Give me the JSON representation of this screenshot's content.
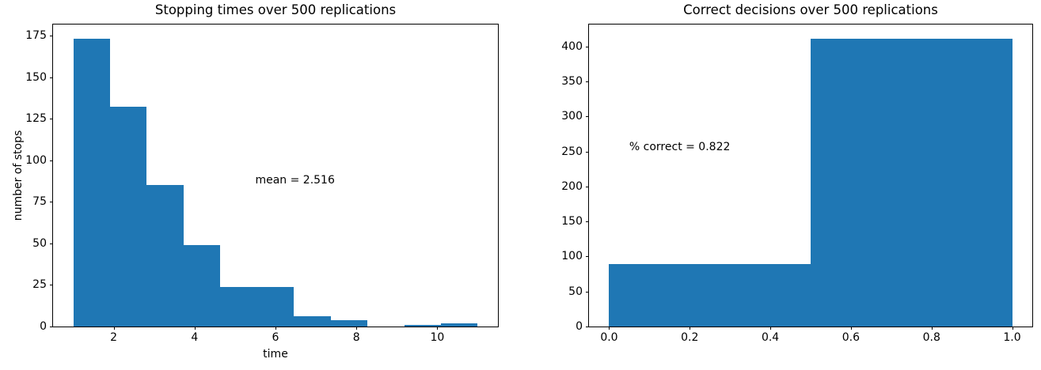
{
  "figure": {
    "background": "#ffffff",
    "bar_color": "#1f77b4",
    "spine_color": "#000000",
    "text_color": "#000000"
  },
  "chart_data": [
    {
      "type": "bar",
      "subtype": "histogram",
      "title": "Stopping times over 500 replications",
      "xlabel": "time",
      "ylabel": "number of stops",
      "annotation": {
        "text": "mean = 2.516",
        "x": 5.5,
        "y": 85
      },
      "bin_edges": [
        1.0,
        1.909,
        2.818,
        3.727,
        4.636,
        5.545,
        6.455,
        7.364,
        8.273,
        9.182,
        10.091,
        11.0
      ],
      "counts": [
        173,
        132,
        85,
        49,
        24,
        24,
        6,
        4,
        0,
        1,
        2
      ],
      "total_replications": 500,
      "xlim": [
        0.5,
        11.5
      ],
      "ylim": [
        0,
        181.65
      ],
      "xticks": [
        2,
        4,
        6,
        8,
        10
      ],
      "xtick_labels": [
        "2",
        "4",
        "6",
        "8",
        "10"
      ],
      "yticks": [
        0,
        25,
        50,
        75,
        100,
        125,
        150,
        175
      ],
      "ytick_labels": [
        "0",
        "25",
        "50",
        "75",
        "100",
        "125",
        "150",
        "175"
      ],
      "grid": false,
      "legend": null
    },
    {
      "type": "bar",
      "subtype": "histogram",
      "title": "Correct decisions over 500 replications",
      "xlabel": "",
      "ylabel": "",
      "annotation": {
        "text": "% correct = 0.822",
        "x": 0.05,
        "y": 250
      },
      "bin_edges": [
        0.0,
        0.5,
        1.0
      ],
      "counts": [
        89,
        411
      ],
      "total_replications": 500,
      "xlim": [
        -0.05,
        1.05
      ],
      "ylim": [
        0,
        431.55
      ],
      "xticks": [
        0.0,
        0.2,
        0.4,
        0.6,
        0.8,
        1.0
      ],
      "xtick_labels": [
        "0.0",
        "0.2",
        "0.4",
        "0.6",
        "0.8",
        "1.0"
      ],
      "yticks": [
        0,
        50,
        100,
        150,
        200,
        250,
        300,
        350,
        400
      ],
      "ytick_labels": [
        "0",
        "50",
        "100",
        "150",
        "200",
        "250",
        "300",
        "350",
        "400"
      ],
      "grid": false,
      "legend": null
    }
  ]
}
